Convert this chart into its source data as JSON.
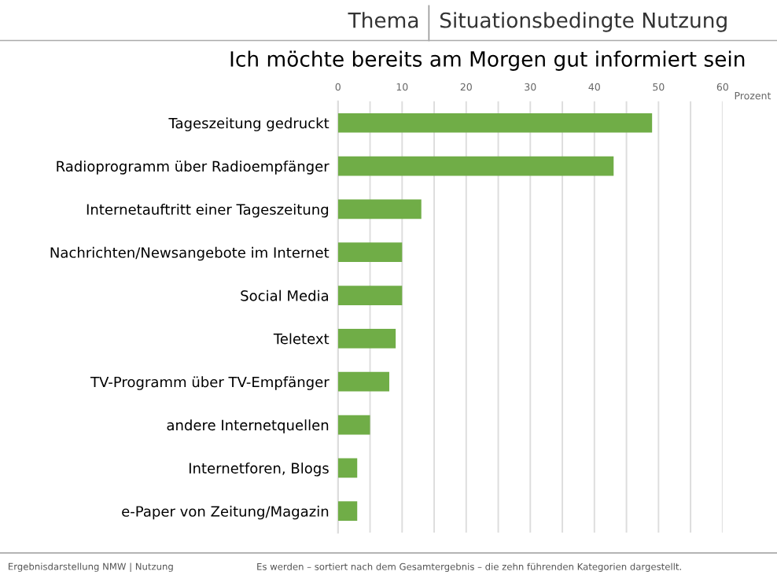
{
  "chart_data": {
    "type": "bar",
    "orientation": "horizontal",
    "title": "Ich möchte bereits am Morgen gut informiert sein",
    "xlabel": "Prozent",
    "annotations": [
      "Thema",
      "Situationsbedingte Nutzung",
      "Ergebnisdarstellung NMW | Nutzung",
      "Es werden – sortiert nach dem Gesamtergebnis – die zehn führenden Kategorien dargestellt."
    ],
    "categories": [
      "Tageszeitung gedruckt",
      "Radioprogramm über Radioempfänger",
      "Internetauftritt einer Tageszeitung",
      "Nachrichten/Newsangebote im Internet",
      "Social Media",
      "Teletext",
      "TV-Programm über TV-Empfänger",
      "andere Internetquellen",
      "Internetforen, Blogs",
      "e-Paper von Zeitung/Magazin"
    ],
    "values": [
      49,
      43,
      13,
      10,
      10,
      9,
      8,
      5,
      3,
      3
    ],
    "color": "#70ad47",
    "xlim": [
      0,
      60
    ],
    "xticks": [
      0,
      {
        "value": 5,
        "label": null
      },
      10,
      {
        "value": 15,
        "label": null
      },
      20,
      {
        "value": 25,
        "label": null
      },
      30,
      {
        "value": 35,
        "label": null
      },
      40,
      {
        "value": 45,
        "label": null
      },
      50,
      {
        "value": 55,
        "label": null
      },
      60
    ],
    "grid": "x"
  }
}
